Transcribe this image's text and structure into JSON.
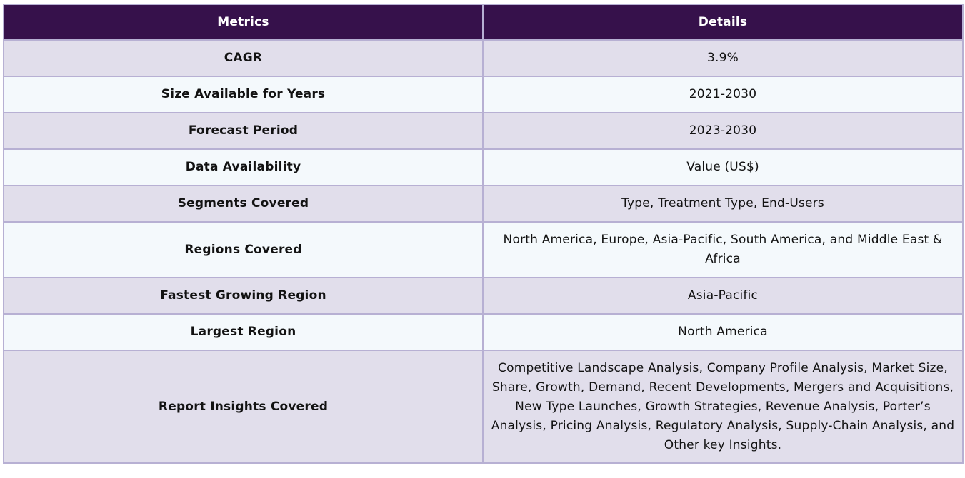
{
  "header": {
    "metrics_label": "Metrics",
    "details_label": "Details"
  },
  "rows": [
    {
      "metric": "CAGR",
      "detail": "3.9%"
    },
    {
      "metric": "Size Available for Years",
      "detail": "2021-2030"
    },
    {
      "metric": "Forecast Period",
      "detail": "2023-2030"
    },
    {
      "metric": "Data Availability",
      "detail": "Value (US$)"
    },
    {
      "metric": "Segments Covered",
      "detail": "Type, Treatment Type, End-Users"
    },
    {
      "metric": "Regions Covered",
      "detail": "North America, Europe, Asia-Pacific, South America, and Middle East & Africa"
    },
    {
      "metric": "Fastest Growing Region",
      "detail": "Asia-Pacific"
    },
    {
      "metric": "Largest Region",
      "detail": "North America"
    },
    {
      "metric": "Report Insights Covered",
      "detail": "Competitive Landscape Analysis, Company Profile Analysis, Market Size, Share, Growth, Demand, Recent Developments, Mergers and Acquisitions, New Type Launches, Growth Strategies, Revenue Analysis, Porter’s Analysis, Pricing Analysis, Regulatory Analysis, Supply-Chain Analysis, and Other key Insights."
    }
  ],
  "colors": {
    "header_bg": "#36114b",
    "row_odd_bg": "#e1deeb",
    "row_even_bg": "#f4f9fc",
    "border": "#b7b0d3"
  }
}
